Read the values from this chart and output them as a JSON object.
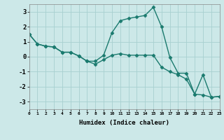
{
  "xlabel": "Humidex (Indice chaleur)",
  "background_color": "#cce8e8",
  "line_color": "#1a7a6e",
  "xlim": [
    0,
    23
  ],
  "ylim": [
    -3.5,
    3.5
  ],
  "xtick_labels": [
    "0",
    "1",
    "2",
    "3",
    "4",
    "5",
    "6",
    "7",
    "8",
    "9",
    "10",
    "11",
    "12",
    "13",
    "14",
    "15",
    "16",
    "17",
    "18",
    "19",
    "20",
    "21",
    "22",
    "23"
  ],
  "ytick_values": [
    -3,
    -2,
    -1,
    0,
    1,
    2,
    3
  ],
  "series1_x": [
    0,
    1,
    2,
    3,
    4,
    5,
    6,
    7,
    8,
    9,
    10,
    11,
    12,
    13,
    14,
    15,
    16,
    17,
    18,
    19,
    20,
    21,
    22,
    23
  ],
  "series1_y": [
    1.5,
    0.85,
    0.7,
    0.65,
    0.3,
    0.3,
    0.05,
    -0.3,
    -0.5,
    -0.2,
    0.1,
    0.2,
    0.1,
    0.1,
    0.1,
    0.1,
    -0.7,
    -1.0,
    -1.2,
    -1.5,
    -2.5,
    -2.55,
    -2.7,
    -2.65
  ],
  "series2_x": [
    0,
    1,
    2,
    3,
    4,
    5,
    6,
    7,
    8,
    9,
    10,
    11,
    12,
    13,
    14,
    15,
    16,
    17,
    18,
    19,
    20,
    21,
    22,
    23
  ],
  "series2_y": [
    1.5,
    0.85,
    0.7,
    0.65,
    0.3,
    0.3,
    0.05,
    -0.3,
    -0.3,
    0.1,
    1.6,
    2.4,
    2.55,
    2.65,
    2.75,
    3.3,
    2.0,
    -0.05,
    -1.1,
    -1.1,
    -2.5,
    -1.2,
    -2.7,
    -2.65
  ],
  "grid_color": "#a8d0d0",
  "marker": "D",
  "markersize": 2.5,
  "linewidth": 1.0
}
